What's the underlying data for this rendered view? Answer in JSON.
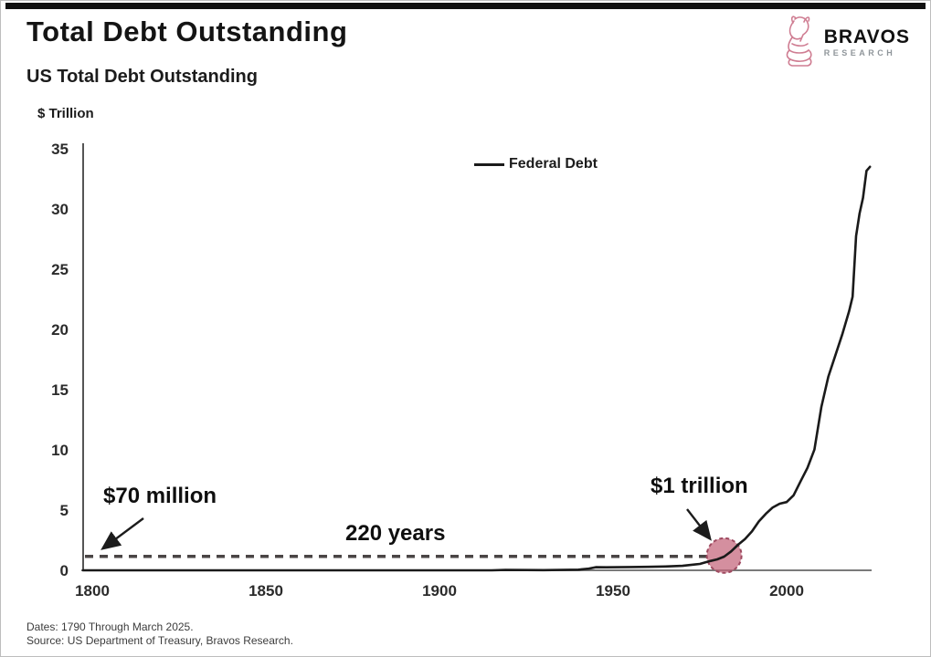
{
  "page": {
    "title": "Total Debt Outstanding",
    "subtitle": "US Total Debt Outstanding",
    "footer": {
      "dates": "Dates: 1790 Through March 2025.",
      "source": "Source: US Department of Treasury, Bravos Research."
    }
  },
  "logo": {
    "brand": "BRAVOS",
    "sub_brand": "RESEARCH",
    "icon": "bull-knight-icon",
    "accent_color": "#cf7d92"
  },
  "chart_data": {
    "type": "line",
    "title": "US Total Debt Outstanding",
    "ylabel": "$ Trillion",
    "xlabel": "",
    "xlim": [
      1790,
      2025
    ],
    "ylim": [
      0,
      35
    ],
    "xticks": [
      1800,
      1850,
      1900,
      1950,
      2000
    ],
    "yticks": [
      0,
      5,
      10,
      15,
      20,
      25,
      30,
      35
    ],
    "grid": false,
    "legend_position": "top-center",
    "series": [
      {
        "name": "Federal Debt",
        "color": "#1a1a1a",
        "points": [
          [
            1790,
            7e-05
          ],
          [
            1850,
            6e-05
          ],
          [
            1900,
            0.0013
          ],
          [
            1915,
            0.003
          ],
          [
            1919,
            0.027
          ],
          [
            1925,
            0.021
          ],
          [
            1930,
            0.016
          ],
          [
            1935,
            0.029
          ],
          [
            1940,
            0.051
          ],
          [
            1943,
            0.14
          ],
          [
            1945,
            0.26
          ],
          [
            1948,
            0.25
          ],
          [
            1955,
            0.27
          ],
          [
            1960,
            0.29
          ],
          [
            1965,
            0.32
          ],
          [
            1970,
            0.37
          ],
          [
            1975,
            0.53
          ],
          [
            1978,
            0.77
          ],
          [
            1980,
            0.91
          ],
          [
            1982,
            1.14
          ],
          [
            1984,
            1.57
          ],
          [
            1986,
            2.12
          ],
          [
            1988,
            2.6
          ],
          [
            1990,
            3.23
          ],
          [
            1992,
            4.06
          ],
          [
            1994,
            4.69
          ],
          [
            1996,
            5.22
          ],
          [
            1998,
            5.53
          ],
          [
            2000,
            5.67
          ],
          [
            2002,
            6.23
          ],
          [
            2004,
            7.38
          ],
          [
            2006,
            8.51
          ],
          [
            2008,
            10.02
          ],
          [
            2010,
            13.56
          ],
          [
            2012,
            16.07
          ],
          [
            2014,
            17.82
          ],
          [
            2016,
            19.57
          ],
          [
            2018,
            21.52
          ],
          [
            2019,
            22.72
          ],
          [
            2020,
            27.75
          ],
          [
            2021,
            29.62
          ],
          [
            2022,
            30.93
          ],
          [
            2023,
            33.17
          ],
          [
            2024,
            33.5
          ]
        ]
      }
    ],
    "reference_line": {
      "value_trillions": 1,
      "style": "dashed",
      "color": "#4a4545"
    },
    "highlight_marker": {
      "year": 1982,
      "value_trillions": 1,
      "fill": "#c4647a",
      "border": "#9e4a60"
    },
    "annotations": {
      "start_value": {
        "label": "$70 million"
      },
      "duration": {
        "label": "220 years"
      },
      "threshold": {
        "label": "$1 trillion"
      }
    }
  }
}
